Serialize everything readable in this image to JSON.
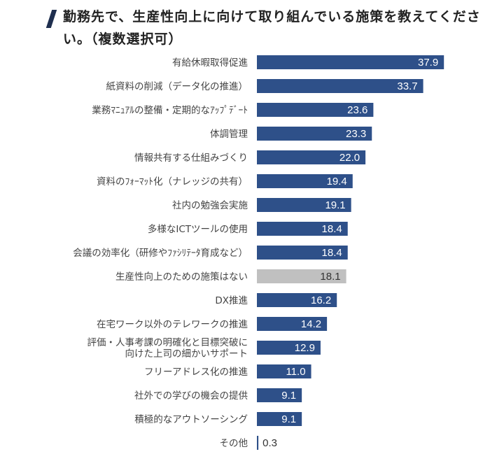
{
  "title": "勤務先で、生産性向上に向けて取り組んでいる施策を教えてください。（複数選択可）",
  "colors": {
    "primary": "#2e5089",
    "highlight": "#c0c0c0",
    "title_mark": "#1f2f4f"
  },
  "chart_data": {
    "type": "bar",
    "orientation": "horizontal",
    "title": "勤務先で、生産性向上に向けて取り組んでいる施策を教えてください。（複数選択可）",
    "xlabel": "",
    "ylabel": "",
    "xlim": [
      0,
      40
    ],
    "grid": false,
    "legend": "none",
    "categories": [
      "有給休暇取得促進",
      "紙資料の削減（データ化の推進）",
      "業務ﾏﾆｭｱﾙの整備・定期的なｱｯﾌﾟﾃﾞｰﾄ",
      "体調管理",
      "情報共有する仕組みづくり",
      "資料のﾌｫｰﾏｯﾄ化（ナレッジの共有）",
      "社内の勉強会実施",
      "多様なICTツールの使用",
      "会議の効率化（研修やﾌｧｼﾘﾃｰﾀ育成など）",
      "生産性向上のための施策はない",
      "DX推進",
      "在宅ワーク以外のテレワークの推進",
      "評価・人事考課の明確化と目標突破に\n向けた上司の細かいサポート",
      "フリーアドレス化の推進",
      "社外での学びの機会の提供",
      "積極的なアウトソーシング",
      "その他"
    ],
    "values": [
      37.9,
      33.7,
      23.6,
      23.3,
      22.0,
      19.4,
      19.1,
      18.4,
      18.4,
      18.1,
      16.2,
      14.2,
      12.9,
      11.0,
      9.1,
      9.1,
      0.3
    ],
    "value_labels": [
      "37.9",
      "33.7",
      "23.6",
      "23.3",
      "22.0",
      "19.4",
      "19.1",
      "18.4",
      "18.4",
      "18.1",
      "16.2",
      "14.2",
      "12.9",
      "11.0",
      "9.1",
      "9.1",
      "0.3"
    ],
    "highlight_index": 9
  }
}
